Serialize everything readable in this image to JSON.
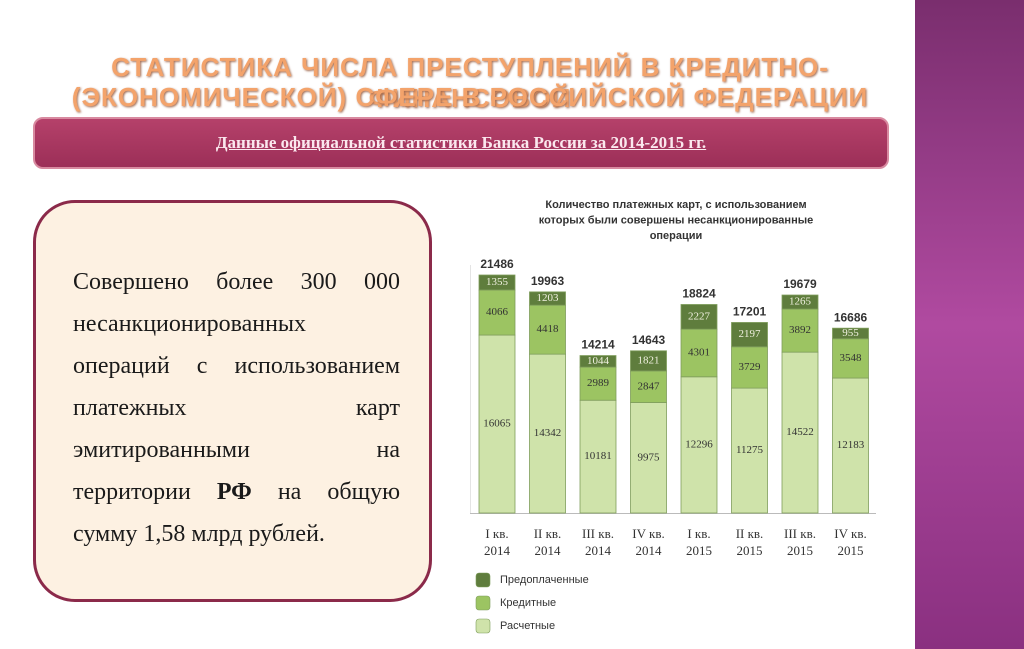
{
  "slide": {
    "title_lines": [
      "СТАТИСТИКА ЧИСЛА ПРЕСТУПЛЕНИЙ В КРЕДИТНО-ФИНАНСОВОЙ",
      "(ЭКОНОМИЧЕСКОЙ) СФЕРЕ В РОССИЙСКОЙ ФЕДЕРАЦИИ"
    ],
    "banner": "Данные официальной статистики Банка России за 2014-2015 гг.",
    "body": [
      "Совершено более 300 000 несанкционированных операций с использованием платежных карт эмитированными на территории ",
      "РФ",
      " на общую сумму 1,58 млрд рублей."
    ]
  },
  "chart_data": {
    "type": "stacked_bar",
    "title": [
      "Количество платежных карт, с использованием",
      "которых были совершены несанкционированные",
      "операции"
    ],
    "categories": [
      "I кв. 2014",
      "II кв. 2014",
      "III кв. 2014",
      "IV кв. 2014",
      "I кв. 2015",
      "II кв. 2015",
      "III кв. 2015",
      "IV кв. 2015"
    ],
    "series": [
      {
        "name": "Расчетные",
        "color": "#cfe3aa",
        "values": [
          16065,
          14342,
          10181,
          9975,
          12296,
          11275,
          14522,
          12183
        ]
      },
      {
        "name": "Кредитные",
        "color": "#9cc462",
        "values": [
          4066,
          4418,
          2989,
          2847,
          4301,
          3729,
          3892,
          3548
        ]
      },
      {
        "name": "Предоплаченные",
        "color": "#5f7d3d",
        "values": [
          1355,
          1203,
          1044,
          1821,
          2227,
          2197,
          1265,
          955
        ]
      }
    ],
    "totals": [
      21486,
      19963,
      14214,
      14643,
      18824,
      17201,
      19679,
      16686
    ]
  }
}
